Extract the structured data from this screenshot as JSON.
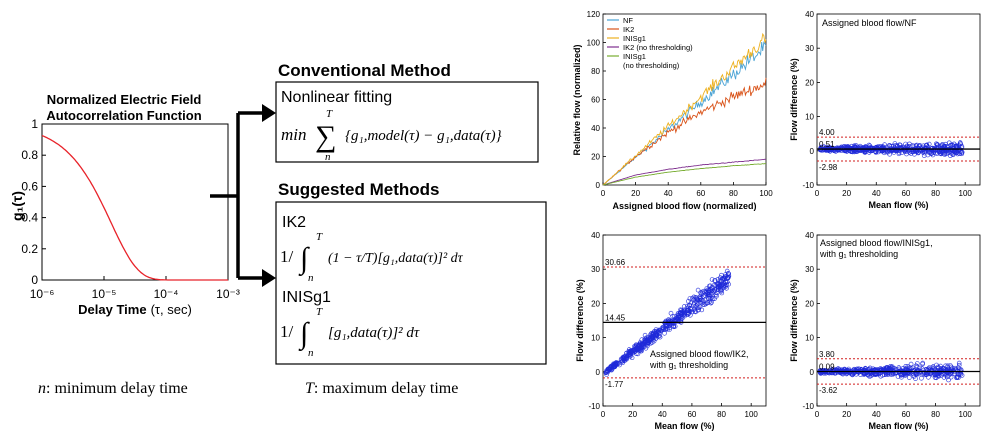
{
  "left_chart": {
    "title_line1": "Normalized Electric Field",
    "title_line2": "Autocorrelation Function",
    "ylabel": "g₁(τ)",
    "xlabel_bold": "Delay Time",
    "xlabel_rest": "(τ, sec)",
    "y_ticks": [
      "1",
      "0.8",
      "0.6",
      "0.4",
      "0.2",
      "0"
    ],
    "x_ticks": [
      "10⁻⁶",
      "10⁻⁵",
      "10⁻⁴",
      "10⁻³"
    ],
    "curve_color": "#e8232a"
  },
  "methods": {
    "conventional_title": "Conventional Method",
    "conventional_box_title": "Nonlinear fitting",
    "conventional_formula": {
      "min": "min",
      "sum": "∑",
      "upper": "T",
      "lower": "n",
      "body": "{g₁,model(τ) − g₁,data(τ)}"
    },
    "suggested_title": "Suggested Methods",
    "ik2_label": "IK2",
    "ik2_formula": {
      "prefix": "1/",
      "integral": "∫",
      "upper": "T",
      "lower": "n",
      "body": "(1 − τ/T)[g₁,data(τ)]² dτ"
    },
    "inisg1_label": "INISg1",
    "inisg1_formula": {
      "prefix": "1/",
      "integral": "∫",
      "upper": "T",
      "lower": "n",
      "body": "[g₁,data(τ)]² dτ"
    },
    "n_note_var": "n",
    "n_note_text": ": minimum delay time",
    "t_note_var": "T",
    "t_note_text": ": maximum delay time"
  },
  "chart_data": [
    {
      "type": "line",
      "xlabel": "Assigned blood flow (normalized)",
      "ylabel": "Relative flow (normalized)",
      "xlim": [
        0,
        100
      ],
      "ylim": [
        0,
        120
      ],
      "x_ticks": [
        "0",
        "20",
        "40",
        "60",
        "80",
        "100"
      ],
      "y_ticks": [
        "0",
        "20",
        "40",
        "60",
        "80",
        "100",
        "120"
      ],
      "legend_position": "top-left",
      "series": [
        {
          "name": "NF",
          "color": "#4aa3d4",
          "x": [
            0,
            100
          ],
          "y": [
            0,
            97
          ]
        },
        {
          "name": "IK2",
          "color": "#d95319",
          "x": [
            0,
            20,
            40,
            60,
            80,
            100
          ],
          "y": [
            0,
            20,
            37,
            51,
            62,
            71
          ]
        },
        {
          "name": "INISg1",
          "color": "#edb120",
          "x": [
            0,
            100
          ],
          "y": [
            0,
            103
          ]
        },
        {
          "name": "IK2 (no thresholding)",
          "color": "#7e2f8e",
          "x": [
            0,
            20,
            40,
            60,
            80,
            100
          ],
          "y": [
            0,
            7,
            11,
            14,
            16,
            18
          ]
        },
        {
          "name": "INISg1\n(no thresholding)",
          "color": "#77ac30",
          "x": [
            0,
            20,
            40,
            60,
            80,
            100
          ],
          "y": [
            0,
            5.5,
            9,
            11.5,
            13.5,
            15
          ]
        }
      ]
    },
    {
      "type": "scatter",
      "title": "Assigned blood flow/NF",
      "xlabel": "Mean flow (%)",
      "ylabel": "Flow difference (%)",
      "xlim": [
        0,
        110
      ],
      "ylim": [
        -10,
        40
      ],
      "x_ticks": [
        "0",
        "20",
        "40",
        "60",
        "80",
        "100"
      ],
      "y_ticks": [
        "-10",
        "0",
        "10",
        "20",
        "30",
        "40"
      ],
      "mean": 0.51,
      "upper_limit": 4.0,
      "lower_limit": -2.98,
      "mean_label": "0.51",
      "upper_label": "4.00",
      "lower_label": "-2.98"
    },
    {
      "type": "scatter",
      "title": "Assigned blood flow/IK2,\nwith g₁ thresholding",
      "xlabel": "Mean flow (%)",
      "ylabel": "Flow difference (%)",
      "xlim": [
        0,
        110
      ],
      "ylim": [
        -10,
        40
      ],
      "x_ticks": [
        "0",
        "20",
        "40",
        "60",
        "80",
        "100"
      ],
      "y_ticks": [
        "-10",
        "0",
        "10",
        "20",
        "30",
        "40"
      ],
      "mean": 14.45,
      "upper_limit": 30.66,
      "lower_limit": -1.77,
      "mean_label": "14.45",
      "upper_label": "30.66",
      "lower_label": "-1.77"
    },
    {
      "type": "scatter",
      "title": "Assigned blood flow/INISg1,\nwith g₁ thresholding",
      "xlabel": "Mean flow (%)",
      "ylabel": "Flow difference (%)",
      "xlim": [
        0,
        110
      ],
      "ylim": [
        -10,
        40
      ],
      "x_ticks": [
        "0",
        "20",
        "40",
        "60",
        "80",
        "100"
      ],
      "y_ticks": [
        "-10",
        "0",
        "10",
        "20",
        "30",
        "40"
      ],
      "mean": 0.09,
      "upper_limit": 3.8,
      "lower_limit": -3.62,
      "mean_label": "0.09",
      "upper_label": "3.80",
      "lower_label": "-3.62"
    }
  ]
}
